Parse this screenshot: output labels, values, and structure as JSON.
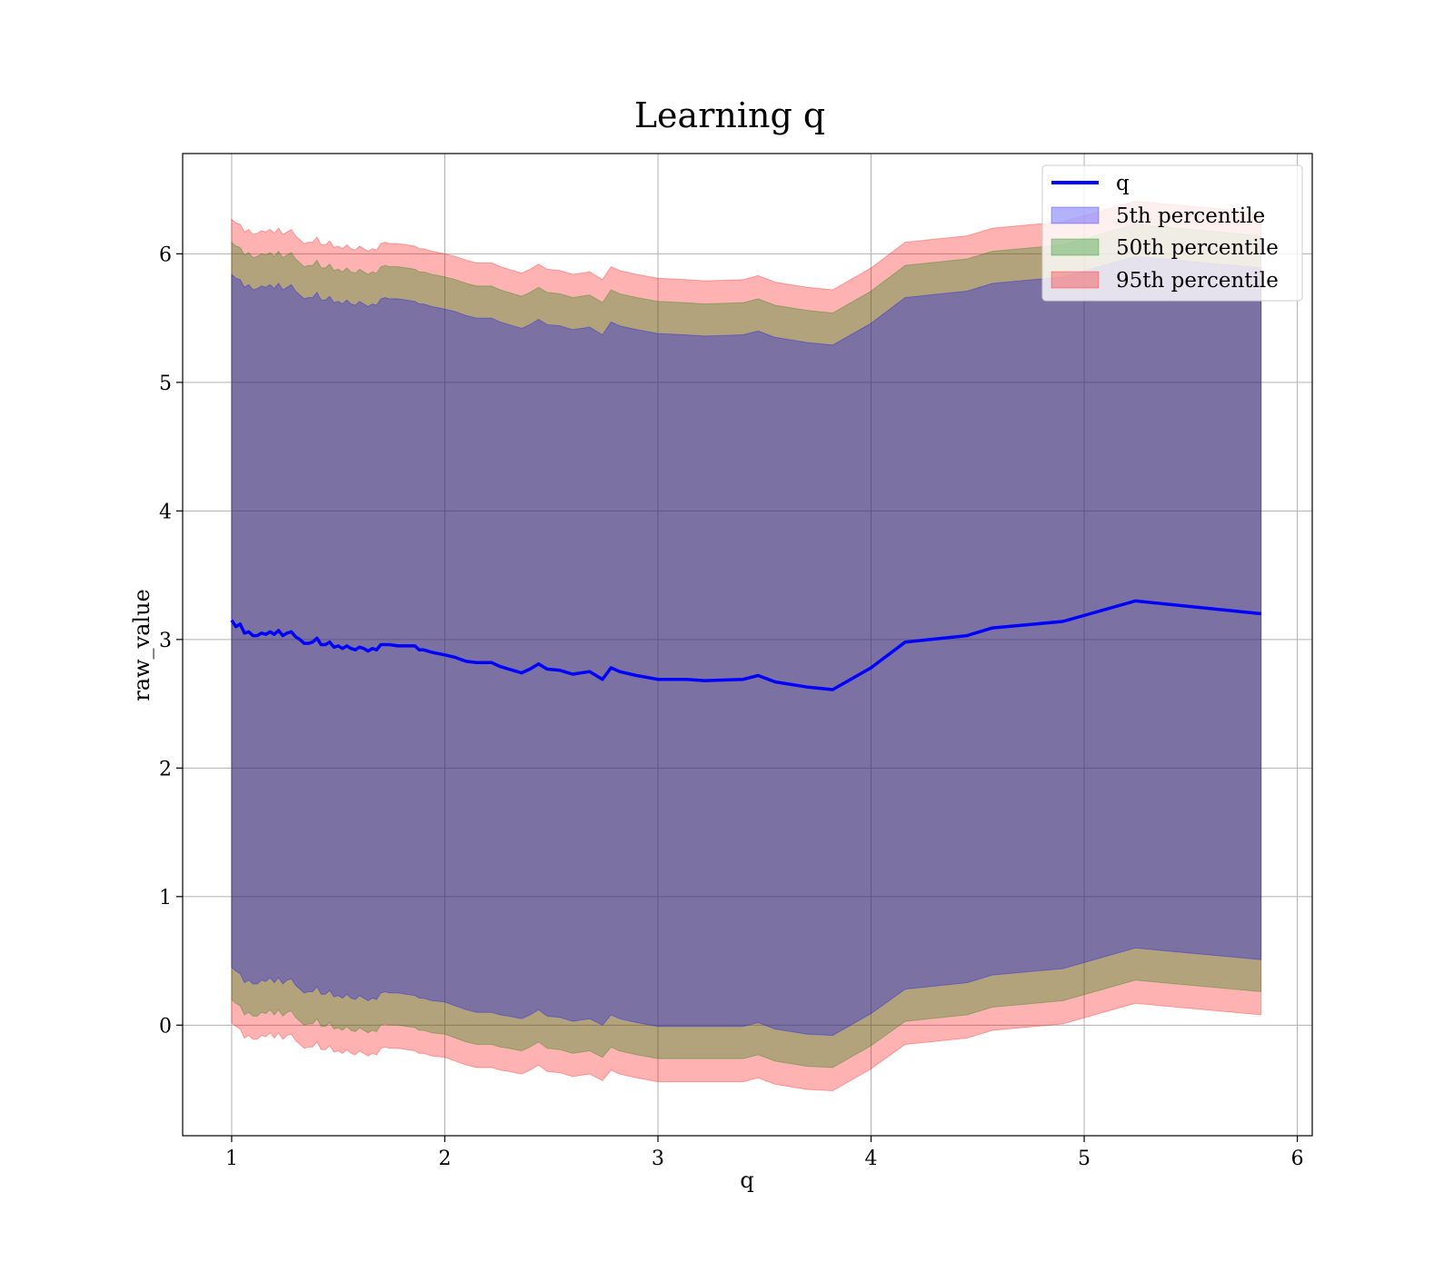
{
  "chart_data": {
    "type": "line",
    "title": "Learning q",
    "xlabel": "q",
    "ylabel": "raw_value",
    "xlim": [
      0.77,
      6.07
    ],
    "ylim": [
      -0.86,
      6.78
    ],
    "xticks": [
      "1",
      "2",
      "3",
      "4",
      "5",
      "6"
    ],
    "yticks": [
      "0",
      "1",
      "2",
      "3",
      "4",
      "5",
      "6"
    ],
    "grid": true,
    "legend_position": "top-right",
    "x": [
      1.0,
      1.02,
      1.04,
      1.06,
      1.08,
      1.1,
      1.12,
      1.14,
      1.16,
      1.18,
      1.2,
      1.22,
      1.24,
      1.26,
      1.28,
      1.3,
      1.32,
      1.34,
      1.36,
      1.38,
      1.4,
      1.42,
      1.44,
      1.46,
      1.48,
      1.5,
      1.52,
      1.54,
      1.56,
      1.58,
      1.6,
      1.62,
      1.64,
      1.66,
      1.68,
      1.7,
      1.72,
      1.74,
      1.78,
      1.82,
      1.86,
      1.88,
      1.9,
      1.94,
      2.0,
      2.05,
      2.1,
      2.15,
      2.22,
      2.26,
      2.3,
      2.36,
      2.4,
      2.44,
      2.48,
      2.54,
      2.6,
      2.68,
      2.74,
      2.78,
      2.82,
      2.9,
      3.0,
      3.13,
      3.22,
      3.4,
      3.47,
      3.55,
      3.7,
      3.82,
      4.0,
      4.16,
      4.45,
      4.57,
      4.9,
      5.24,
      5.83
    ],
    "series": [
      {
        "name": "q",
        "color": "#0000ff",
        "values": [
          3.15,
          3.1,
          3.12,
          3.05,
          3.06,
          3.03,
          3.03,
          3.05,
          3.04,
          3.06,
          3.04,
          3.07,
          3.03,
          3.05,
          3.06,
          3.02,
          3.0,
          2.97,
          2.97,
          2.98,
          3.01,
          2.96,
          2.96,
          2.98,
          2.94,
          2.95,
          2.93,
          2.95,
          2.93,
          2.92,
          2.94,
          2.93,
          2.91,
          2.93,
          2.92,
          2.96,
          2.96,
          2.96,
          2.95,
          2.95,
          2.95,
          2.92,
          2.92,
          2.9,
          2.88,
          2.86,
          2.83,
          2.82,
          2.82,
          2.79,
          2.77,
          2.74,
          2.77,
          2.81,
          2.77,
          2.76,
          2.73,
          2.75,
          2.69,
          2.78,
          2.75,
          2.72,
          2.69,
          2.69,
          2.68,
          2.69,
          2.72,
          2.67,
          2.63,
          2.61,
          2.78,
          2.98,
          3.03,
          3.09,
          3.14,
          3.3,
          3.2
        ]
      }
    ],
    "bands": [
      {
        "name": "5th percentile",
        "color": "#0000ff",
        "lower": [
          0.45,
          0.42,
          0.4,
          0.33,
          0.35,
          0.32,
          0.32,
          0.35,
          0.34,
          0.37,
          0.33,
          0.37,
          0.32,
          0.35,
          0.36,
          0.31,
          0.28,
          0.25,
          0.26,
          0.26,
          0.3,
          0.24,
          0.24,
          0.27,
          0.22,
          0.23,
          0.21,
          0.24,
          0.21,
          0.2,
          0.23,
          0.21,
          0.19,
          0.21,
          0.2,
          0.25,
          0.26,
          0.25,
          0.25,
          0.24,
          0.23,
          0.21,
          0.21,
          0.19,
          0.18,
          0.15,
          0.12,
          0.1,
          0.1,
          0.08,
          0.07,
          0.05,
          0.08,
          0.12,
          0.07,
          0.06,
          0.03,
          0.05,
          0.0,
          0.08,
          0.05,
          0.02,
          -0.01,
          -0.01,
          -0.01,
          -0.01,
          0.02,
          -0.03,
          -0.07,
          -0.08,
          0.09,
          0.28,
          0.33,
          0.39,
          0.44,
          0.6,
          0.51
        ],
        "upper": [
          5.84,
          5.81,
          5.8,
          5.74,
          5.76,
          5.72,
          5.73,
          5.75,
          5.74,
          5.76,
          5.73,
          5.77,
          5.72,
          5.74,
          5.76,
          5.71,
          5.68,
          5.65,
          5.66,
          5.66,
          5.7,
          5.64,
          5.64,
          5.67,
          5.62,
          5.63,
          5.61,
          5.64,
          5.61,
          5.6,
          5.63,
          5.61,
          5.59,
          5.61,
          5.6,
          5.65,
          5.66,
          5.65,
          5.65,
          5.64,
          5.63,
          5.61,
          5.61,
          5.59,
          5.57,
          5.55,
          5.52,
          5.5,
          5.5,
          5.47,
          5.45,
          5.42,
          5.45,
          5.49,
          5.45,
          5.44,
          5.41,
          5.43,
          5.37,
          5.47,
          5.44,
          5.41,
          5.38,
          5.37,
          5.36,
          5.37,
          5.4,
          5.35,
          5.31,
          5.29,
          5.46,
          5.66,
          5.71,
          5.77,
          5.82,
          5.98,
          5.89
        ]
      },
      {
        "name": "50th percentile",
        "color": "#008000",
        "lower": [
          0.2,
          0.17,
          0.15,
          0.08,
          0.1,
          0.07,
          0.07,
          0.1,
          0.09,
          0.12,
          0.08,
          0.12,
          0.07,
          0.1,
          0.11,
          0.06,
          0.03,
          0.0,
          0.01,
          0.01,
          0.05,
          -0.01,
          -0.01,
          0.02,
          -0.03,
          -0.02,
          -0.04,
          -0.01,
          -0.04,
          -0.05,
          -0.02,
          -0.04,
          -0.06,
          -0.04,
          -0.05,
          0.0,
          0.01,
          0.0,
          0.0,
          -0.01,
          -0.02,
          -0.04,
          -0.04,
          -0.06,
          -0.07,
          -0.1,
          -0.13,
          -0.15,
          -0.15,
          -0.17,
          -0.18,
          -0.2,
          -0.17,
          -0.13,
          -0.18,
          -0.19,
          -0.22,
          -0.2,
          -0.25,
          -0.17,
          -0.2,
          -0.23,
          -0.26,
          -0.26,
          -0.26,
          -0.26,
          -0.23,
          -0.28,
          -0.32,
          -0.33,
          -0.16,
          0.03,
          0.08,
          0.14,
          0.19,
          0.35,
          0.26
        ],
        "upper": [
          6.09,
          6.06,
          6.05,
          5.99,
          6.01,
          5.97,
          5.98,
          6.0,
          5.99,
          6.01,
          5.98,
          6.02,
          5.97,
          5.99,
          6.01,
          5.96,
          5.93,
          5.9,
          5.91,
          5.91,
          5.95,
          5.89,
          5.89,
          5.92,
          5.87,
          5.88,
          5.86,
          5.89,
          5.86,
          5.85,
          5.88,
          5.86,
          5.84,
          5.86,
          5.85,
          5.9,
          5.91,
          5.9,
          5.9,
          5.89,
          5.88,
          5.86,
          5.86,
          5.84,
          5.82,
          5.8,
          5.77,
          5.75,
          5.75,
          5.72,
          5.7,
          5.67,
          5.7,
          5.74,
          5.7,
          5.69,
          5.66,
          5.68,
          5.62,
          5.72,
          5.69,
          5.66,
          5.63,
          5.62,
          5.61,
          5.62,
          5.65,
          5.6,
          5.56,
          5.54,
          5.71,
          5.91,
          5.96,
          6.02,
          6.07,
          6.23,
          6.14
        ]
      },
      {
        "name": "95th percentile",
        "color": "#ff0000",
        "lower": [
          0.02,
          -0.01,
          -0.03,
          -0.1,
          -0.08,
          -0.11,
          -0.11,
          -0.08,
          -0.09,
          -0.06,
          -0.1,
          -0.06,
          -0.11,
          -0.08,
          -0.07,
          -0.12,
          -0.15,
          -0.18,
          -0.17,
          -0.17,
          -0.13,
          -0.19,
          -0.19,
          -0.16,
          -0.21,
          -0.2,
          -0.22,
          -0.19,
          -0.22,
          -0.23,
          -0.2,
          -0.22,
          -0.24,
          -0.22,
          -0.23,
          -0.18,
          -0.17,
          -0.18,
          -0.18,
          -0.19,
          -0.2,
          -0.22,
          -0.22,
          -0.24,
          -0.25,
          -0.28,
          -0.31,
          -0.33,
          -0.33,
          -0.35,
          -0.36,
          -0.38,
          -0.35,
          -0.31,
          -0.36,
          -0.37,
          -0.4,
          -0.38,
          -0.43,
          -0.35,
          -0.38,
          -0.41,
          -0.44,
          -0.44,
          -0.44,
          -0.44,
          -0.41,
          -0.46,
          -0.5,
          -0.51,
          -0.34,
          -0.15,
          -0.1,
          -0.04,
          0.01,
          0.17,
          0.08
        ],
        "upper": [
          6.27,
          6.24,
          6.23,
          6.17,
          6.19,
          6.15,
          6.16,
          6.18,
          6.17,
          6.19,
          6.16,
          6.2,
          6.15,
          6.17,
          6.19,
          6.14,
          6.11,
          6.08,
          6.09,
          6.09,
          6.13,
          6.07,
          6.07,
          6.1,
          6.05,
          6.06,
          6.04,
          6.07,
          6.04,
          6.03,
          6.06,
          6.04,
          6.02,
          6.04,
          6.03,
          6.08,
          6.09,
          6.08,
          6.08,
          6.07,
          6.06,
          6.04,
          6.04,
          6.02,
          6.0,
          5.98,
          5.95,
          5.93,
          5.93,
          5.9,
          5.88,
          5.85,
          5.88,
          5.92,
          5.88,
          5.87,
          5.84,
          5.86,
          5.8,
          5.9,
          5.87,
          5.84,
          5.81,
          5.8,
          5.79,
          5.8,
          5.83,
          5.78,
          5.74,
          5.72,
          5.89,
          6.09,
          6.14,
          6.2,
          6.25,
          6.41,
          6.32
        ]
      }
    ],
    "legend": [
      "q",
      "5th percentile",
      "50th percentile",
      "95th percentile"
    ]
  }
}
